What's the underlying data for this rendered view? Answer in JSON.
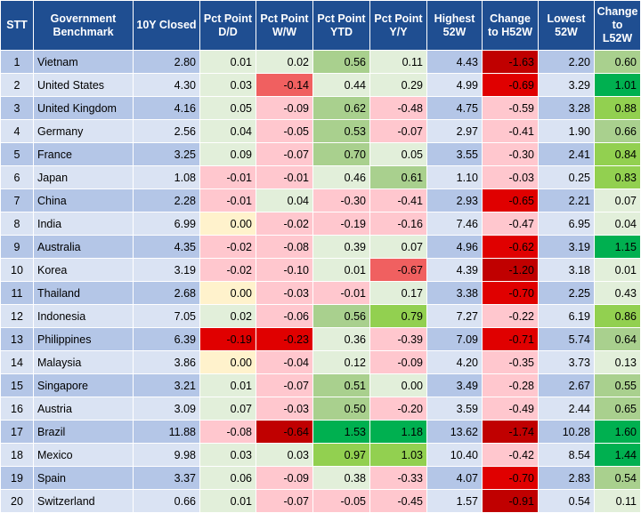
{
  "columns": [
    "STT",
    "Government Benchmark",
    "10Y Closed",
    "Pct Point D/D",
    "Pct Point W/W",
    "Pct Point YTD",
    "Pct Point Y/Y",
    "Highest 52W",
    "Change to H52W",
    "Lowest 52W",
    "Change to L52W"
  ],
  "rows": [
    {
      "stt": "1",
      "country": "Vietnam",
      "closed": "2.80",
      "dd": "0.01",
      "ww": "0.02",
      "ytd": "0.56",
      "yy": "0.11",
      "h52": "4.43",
      "ch52": "-1.63",
      "l52": "2.20",
      "cl52": "0.60"
    },
    {
      "stt": "2",
      "country": "United States",
      "closed": "4.30",
      "dd": "0.03",
      "ww": "-0.14",
      "ytd": "0.44",
      "yy": "0.29",
      "h52": "4.99",
      "ch52": "-0.69",
      "l52": "3.29",
      "cl52": "1.01"
    },
    {
      "stt": "3",
      "country": "United Kingdom",
      "closed": "4.16",
      "dd": "0.05",
      "ww": "-0.09",
      "ytd": "0.62",
      "yy": "-0.48",
      "h52": "4.75",
      "ch52": "-0.59",
      "l52": "3.28",
      "cl52": "0.88"
    },
    {
      "stt": "4",
      "country": "Germany",
      "closed": "2.56",
      "dd": "0.04",
      "ww": "-0.05",
      "ytd": "0.53",
      "yy": "-0.07",
      "h52": "2.97",
      "ch52": "-0.41",
      "l52": "1.90",
      "cl52": "0.66"
    },
    {
      "stt": "5",
      "country": "France",
      "closed": "3.25",
      "dd": "0.09",
      "ww": "-0.07",
      "ytd": "0.70",
      "yy": "0.05",
      "h52": "3.55",
      "ch52": "-0.30",
      "l52": "2.41",
      "cl52": "0.84"
    },
    {
      "stt": "6",
      "country": "Japan",
      "closed": "1.08",
      "dd": "-0.01",
      "ww": "-0.01",
      "ytd": "0.46",
      "yy": "0.61",
      "h52": "1.10",
      "ch52": "-0.03",
      "l52": "0.25",
      "cl52": "0.83"
    },
    {
      "stt": "7",
      "country": "China",
      "closed": "2.28",
      "dd": "-0.01",
      "ww": "0.04",
      "ytd": "-0.30",
      "yy": "-0.41",
      "h52": "2.93",
      "ch52": "-0.65",
      "l52": "2.21",
      "cl52": "0.07"
    },
    {
      "stt": "8",
      "country": "India",
      "closed": "6.99",
      "dd": "0.00",
      "ww": "-0.02",
      "ytd": "-0.19",
      "yy": "-0.16",
      "h52": "7.46",
      "ch52": "-0.47",
      "l52": "6.95",
      "cl52": "0.04"
    },
    {
      "stt": "9",
      "country": "Australia",
      "closed": "4.35",
      "dd": "-0.02",
      "ww": "-0.08",
      "ytd": "0.39",
      "yy": "0.07",
      "h52": "4.96",
      "ch52": "-0.62",
      "l52": "3.19",
      "cl52": "1.15"
    },
    {
      "stt": "10",
      "country": "Korea",
      "closed": "3.19",
      "dd": "-0.02",
      "ww": "-0.10",
      "ytd": "0.01",
      "yy": "-0.67",
      "h52": "4.39",
      "ch52": "-1.20",
      "l52": "3.18",
      "cl52": "0.01"
    },
    {
      "stt": "11",
      "country": "Thailand",
      "closed": "2.68",
      "dd": "0.00",
      "ww": "-0.03",
      "ytd": "-0.01",
      "yy": "0.17",
      "h52": "3.38",
      "ch52": "-0.70",
      "l52": "2.25",
      "cl52": "0.43"
    },
    {
      "stt": "12",
      "country": "Indonesia",
      "closed": "7.05",
      "dd": "0.02",
      "ww": "-0.06",
      "ytd": "0.56",
      "yy": "0.79",
      "h52": "7.27",
      "ch52": "-0.22",
      "l52": "6.19",
      "cl52": "0.86"
    },
    {
      "stt": "13",
      "country": "Philippines",
      "closed": "6.39",
      "dd": "-0.19",
      "ww": "-0.23",
      "ytd": "0.36",
      "yy": "-0.39",
      "h52": "7.09",
      "ch52": "-0.71",
      "l52": "5.74",
      "cl52": "0.64"
    },
    {
      "stt": "14",
      "country": "Malaysia",
      "closed": "3.86",
      "dd": "0.00",
      "ww": "-0.04",
      "ytd": "0.12",
      "yy": "-0.09",
      "h52": "4.20",
      "ch52": "-0.35",
      "l52": "3.73",
      "cl52": "0.13"
    },
    {
      "stt": "15",
      "country": "Singapore",
      "closed": "3.21",
      "dd": "0.01",
      "ww": "-0.07",
      "ytd": "0.51",
      "yy": "0.00",
      "h52": "3.49",
      "ch52": "-0.28",
      "l52": "2.67",
      "cl52": "0.55"
    },
    {
      "stt": "16",
      "country": "Austria",
      "closed": "3.09",
      "dd": "0.07",
      "ww": "-0.03",
      "ytd": "0.50",
      "yy": "-0.20",
      "h52": "3.59",
      "ch52": "-0.49",
      "l52": "2.44",
      "cl52": "0.65"
    },
    {
      "stt": "17",
      "country": "Brazil",
      "closed": "11.88",
      "dd": "-0.08",
      "ww": "-0.64",
      "ytd": "1.53",
      "yy": "1.18",
      "h52": "13.62",
      "ch52": "-1.74",
      "l52": "10.28",
      "cl52": "1.60"
    },
    {
      "stt": "18",
      "country": "Mexico",
      "closed": "9.98",
      "dd": "0.03",
      "ww": "0.03",
      "ytd": "0.97",
      "yy": "1.03",
      "h52": "10.40",
      "ch52": "-0.42",
      "l52": "8.54",
      "cl52": "1.44"
    },
    {
      "stt": "19",
      "country": "Spain",
      "closed": "3.37",
      "dd": "0.06",
      "ww": "-0.09",
      "ytd": "0.38",
      "yy": "-0.33",
      "h52": "4.07",
      "ch52": "-0.70",
      "l52": "2.83",
      "cl52": "0.54"
    },
    {
      "stt": "20",
      "country": "Switzerland",
      "closed": "0.66",
      "dd": "0.01",
      "ww": "-0.07",
      "ytd": "-0.05",
      "yy": "-0.45",
      "h52": "1.57",
      "ch52": "-0.91",
      "l52": "0.54",
      "cl52": "0.11"
    }
  ],
  "colors": {
    "header_bg": "#1f4e91",
    "band_odd": "#b4c6e7",
    "band_even": "#dae3f3",
    "neg_strong": "#e00000",
    "neg_mid": "#f06060",
    "neg_light": "#ffc7ce",
    "neutral": "#fff2cc",
    "pos_light": "#e2efda",
    "pos_mid": "#c6e0b4",
    "pos_strong": "#a9d08e",
    "pos_vstrong": "#00b050"
  }
}
